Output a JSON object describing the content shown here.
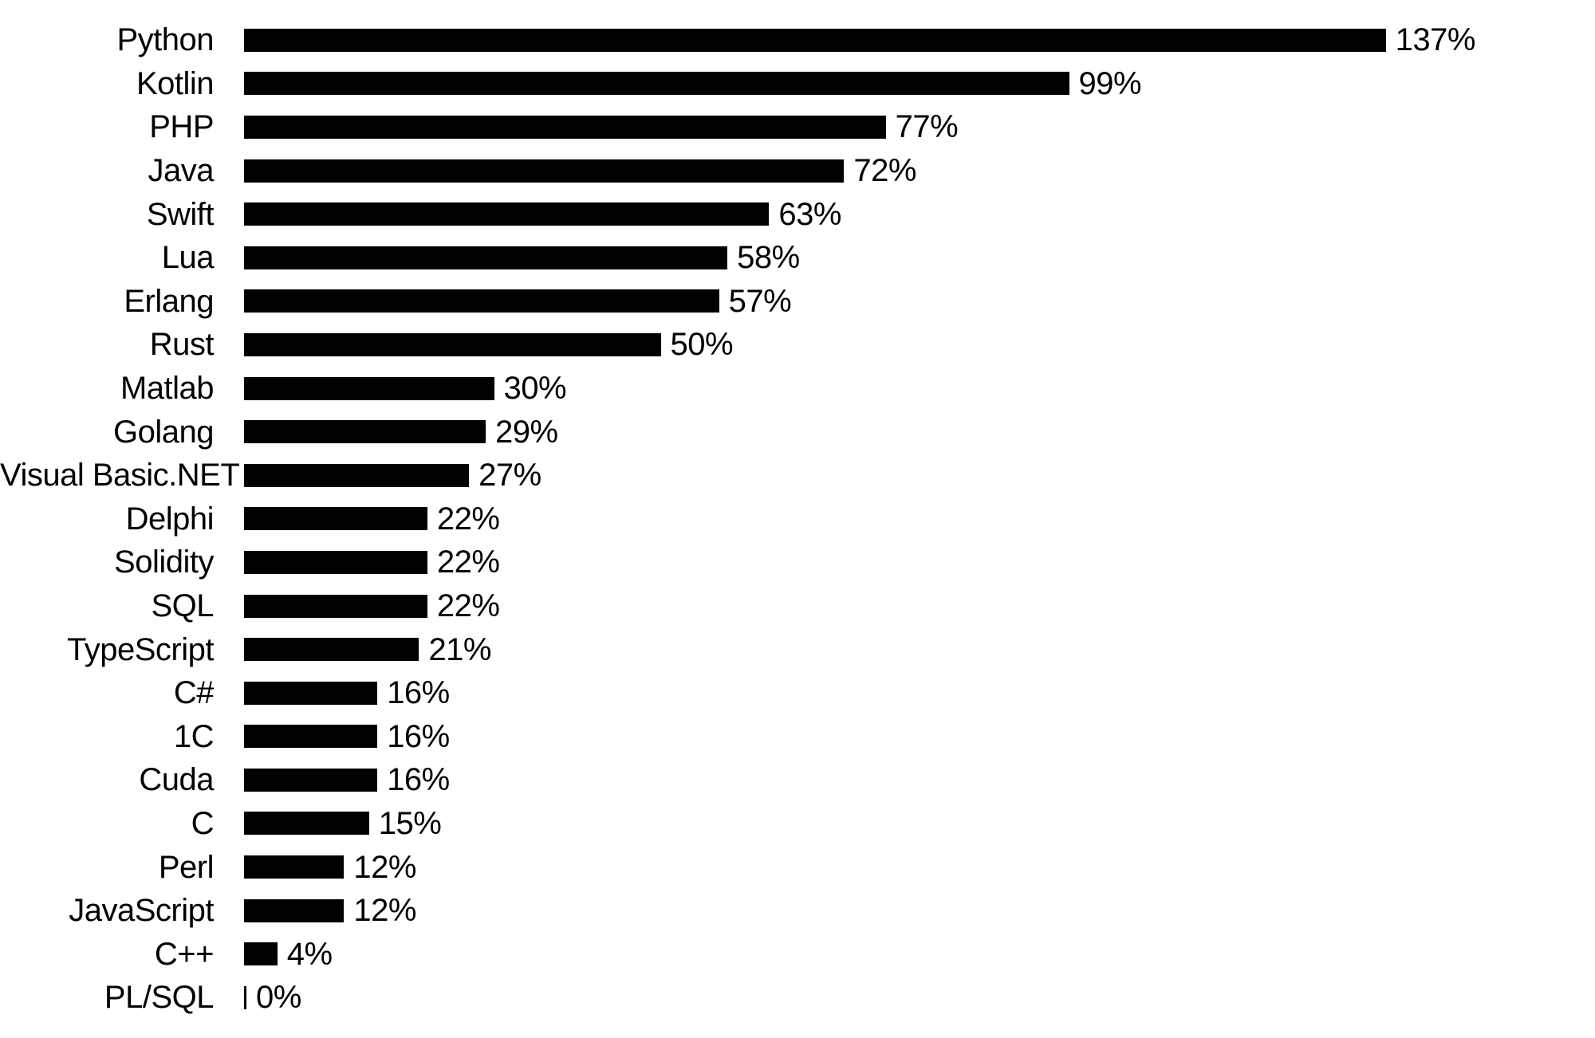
{
  "chart_data": {
    "type": "bar",
    "orientation": "horizontal",
    "title": "",
    "xlabel": "",
    "ylabel": "",
    "legend": "none",
    "grid": false,
    "axes_visible": false,
    "xlim": [
      0,
      140
    ],
    "bar_color": "#000000",
    "background_color": "#ffffff",
    "value_suffix": "%",
    "categories": [
      "Python",
      "Kotlin",
      "PHP",
      "Java",
      "Swift",
      "Lua",
      "Erlang",
      "Rust",
      "Matlab",
      "Golang",
      "Visual Basic.NET",
      "Delphi",
      "Solidity",
      "SQL",
      "TypeScript",
      "C#",
      "1C",
      "Cuda",
      "C",
      "Perl",
      "JavaScript",
      "C++",
      "PL/SQL"
    ],
    "values": [
      137,
      99,
      77,
      72,
      63,
      58,
      57,
      50,
      30,
      29,
      27,
      22,
      22,
      22,
      21,
      16,
      16,
      16,
      15,
      12,
      12,
      4,
      0
    ],
    "value_labels": [
      "137%",
      "99%",
      "77%",
      "72%",
      "63%",
      "58%",
      "57%",
      "50%",
      "30%",
      "29%",
      "27%",
      "22%",
      "22%",
      "22%",
      "21%",
      "16%",
      "16%",
      "16%",
      "15%",
      "12%",
      "12%",
      "4%",
      "0%"
    ]
  }
}
